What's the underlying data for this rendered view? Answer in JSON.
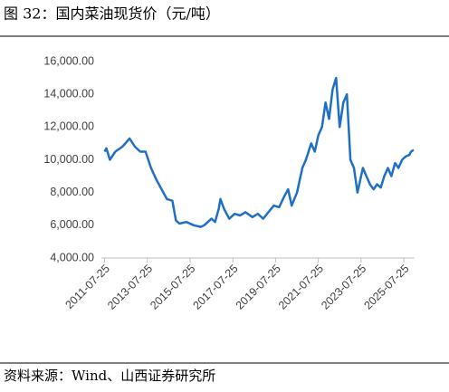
{
  "chart_data": {
    "type": "line",
    "title": "图 32：国内菜油现货价（元/吨）",
    "source": "资料来源：Wind、山西证券研究所",
    "x": [
      "2011-07-25",
      "2011-08-25",
      "2011-10-25",
      "2012-01-25",
      "2012-05-25",
      "2012-09-25",
      "2012-12-25",
      "2013-03-25",
      "2013-06-25",
      "2013-09-25",
      "2013-12-25",
      "2014-03-25",
      "2014-06-25",
      "2014-09-25",
      "2014-11-25",
      "2015-01-25",
      "2015-05-25",
      "2015-09-25",
      "2016-01-25",
      "2016-03-25",
      "2016-07-25",
      "2016-09-25",
      "2016-11-25",
      "2016-12-25",
      "2017-02-25",
      "2017-05-25",
      "2017-08-25",
      "2017-11-25",
      "2018-02-25",
      "2018-06-25",
      "2018-09-25",
      "2018-12-25",
      "2019-03-25",
      "2019-06-25",
      "2019-09-25",
      "2019-12-25",
      "2020-02-25",
      "2020-04-25",
      "2020-07-25",
      "2020-10-25",
      "2020-12-25",
      "2021-03-25",
      "2021-05-25",
      "2021-07-25",
      "2021-09-25",
      "2021-11-25",
      "2022-01-25",
      "2022-03-25",
      "2022-05-25",
      "2022-07-25",
      "2022-09-25",
      "2022-11-25",
      "2023-01-25",
      "2023-03-25",
      "2023-05-25",
      "2023-08-25",
      "2023-10-25",
      "2023-12-25",
      "2024-02-25",
      "2024-04-25",
      "2024-06-25",
      "2024-08-25",
      "2024-10-25",
      "2024-12-25",
      "2025-02-25",
      "2025-04-25",
      "2025-06-25",
      "2025-08-25",
      "2025-10-25",
      "2025-11-25",
      "2026-01-10"
    ],
    "series": [
      {
        "color": "#1f6fc5",
        "values": [
          10500,
          10700,
          10000,
          10500,
          10800,
          11300,
          10800,
          10500,
          10500,
          9500,
          8800,
          8200,
          7600,
          7500,
          6300,
          6100,
          6200,
          6000,
          5900,
          6000,
          6400,
          6200,
          7000,
          7600,
          7000,
          6400,
          6700,
          6600,
          6800,
          6500,
          6700,
          6400,
          6800,
          7200,
          7100,
          7800,
          8200,
          7200,
          8000,
          9500,
          10000,
          11000,
          10500,
          11500,
          12000,
          13500,
          12500,
          14300,
          15000,
          12000,
          13500,
          14000,
          10000,
          9500,
          8000,
          9500,
          9000,
          8500,
          8200,
          8500,
          8300,
          9000,
          9500,
          9000,
          9800,
          9500,
          10000,
          10200,
          10300,
          10500,
          10600
        ]
      }
    ],
    "xlim": [
      "2011-06-01",
      "2026-01-25"
    ],
    "xticks": [
      "2011-07-25",
      "2013-07-25",
      "2015-07-25",
      "2017-07-25",
      "2019-07-25",
      "2021-07-25",
      "2023-07-25",
      "2025-07-25"
    ],
    "ylim": [
      4000,
      16000
    ],
    "yticks": [
      {
        "value": 4000,
        "label": "4,000.00"
      },
      {
        "value": 6000,
        "label": "6,000.00"
      },
      {
        "value": 8000,
        "label": "8,000.00"
      },
      {
        "value": 10000,
        "label": "10,000.00"
      },
      {
        "value": 12000,
        "label": "12,000.00"
      },
      {
        "value": 14000,
        "label": "14,000.00"
      },
      {
        "value": 16000,
        "label": "16,000.00"
      }
    ]
  }
}
